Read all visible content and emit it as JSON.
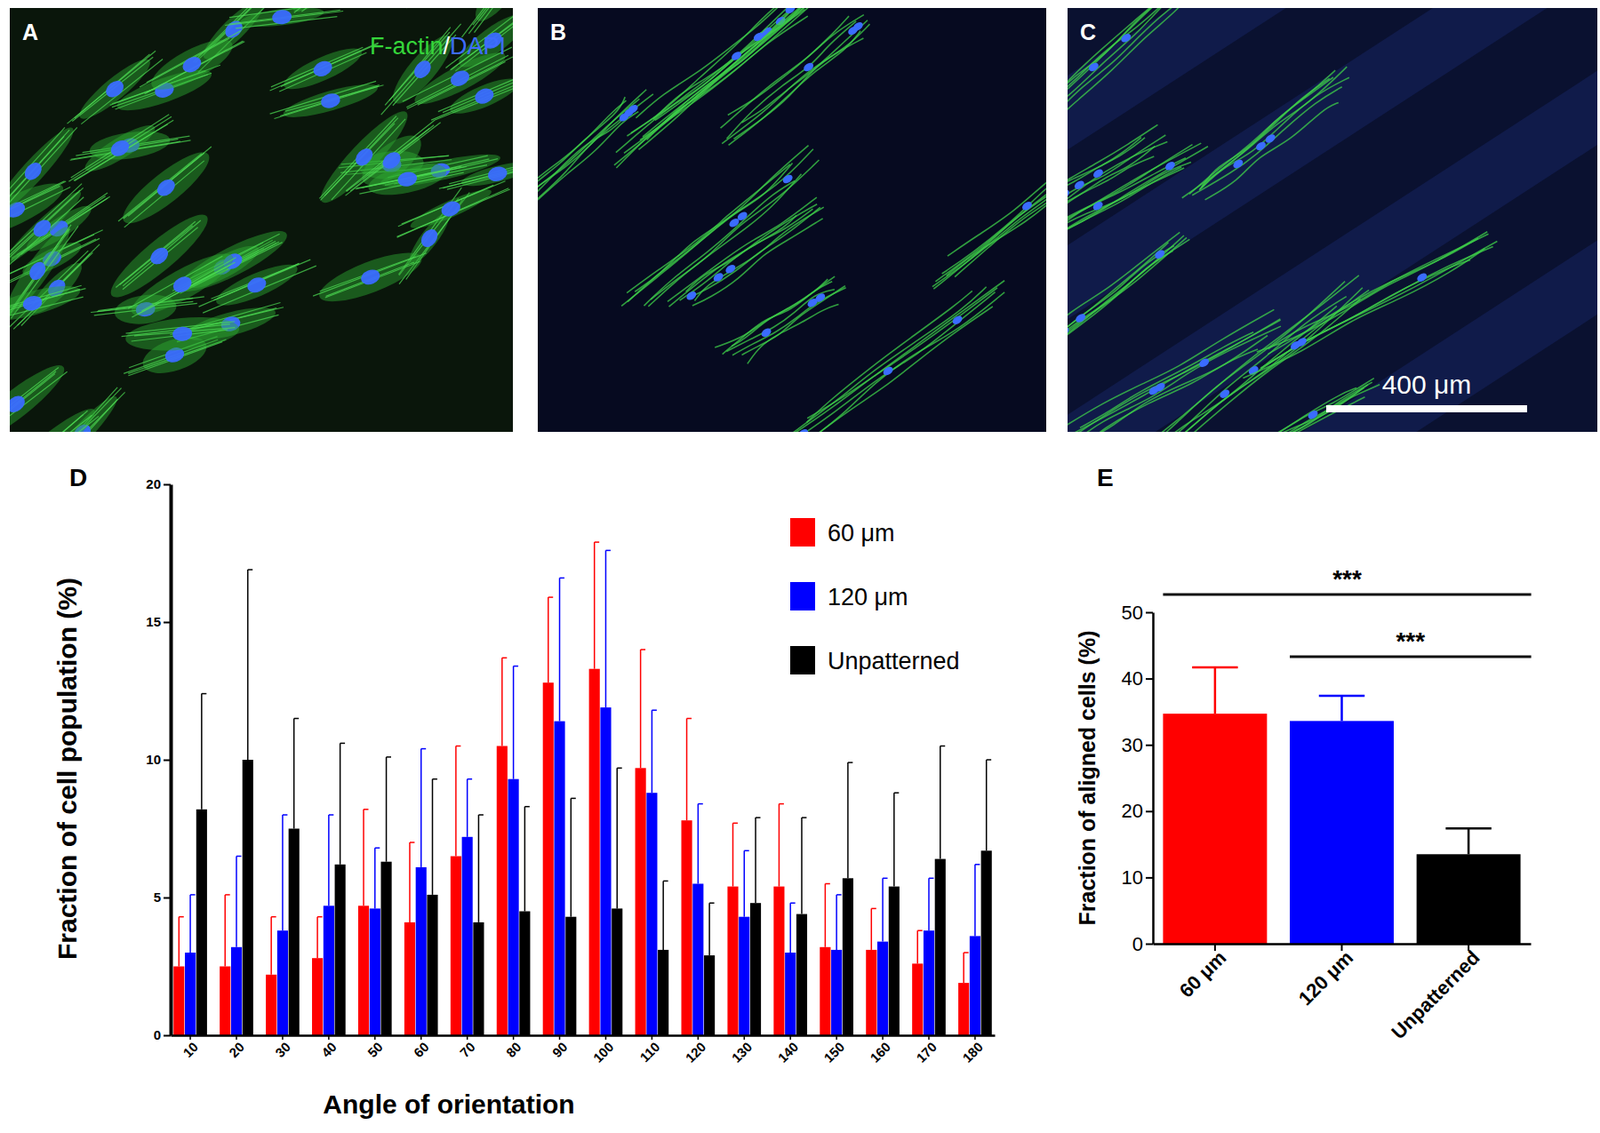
{
  "images": [
    {
      "label": "A",
      "stains": [
        {
          "text": "F-actin",
          "color": "#35d63a"
        },
        {
          "text": "/",
          "color": "#ffffff"
        },
        {
          "text": "DAPI",
          "color": "#3f6cff"
        }
      ]
    },
    {
      "label": "B"
    },
    {
      "label": "C",
      "scale_bar": "400 μm"
    }
  ],
  "chart_data": [
    {
      "type": "bar",
      "panel_label": "D",
      "y_label": "Fraction of cell population (%)",
      "x_label": "Angle of orientation",
      "categories": [
        10,
        20,
        30,
        40,
        50,
        60,
        70,
        80,
        90,
        100,
        110,
        120,
        130,
        140,
        150,
        160,
        170,
        180
      ],
      "ylim": [
        0,
        20
      ],
      "yticks": [
        0,
        5,
        10,
        15,
        20
      ],
      "legend": "top-right",
      "series": [
        {
          "name": "60 μm",
          "color": "#ff0000",
          "values": [
            2.5,
            2.5,
            2.2,
            2.8,
            4.7,
            4.1,
            6.5,
            10.5,
            12.8,
            13.3,
            9.7,
            7.8,
            5.4,
            5.4,
            3.2,
            3.1,
            2.6,
            1.9
          ],
          "errors": [
            1.8,
            2.6,
            2.1,
            1.5,
            3.5,
            2.9,
            4.0,
            3.2,
            3.1,
            4.6,
            4.3,
            3.7,
            2.3,
            3.0,
            2.3,
            1.5,
            1.2,
            1.1
          ]
        },
        {
          "name": "120 μm",
          "color": "#0000ff",
          "values": [
            3.0,
            3.2,
            3.8,
            4.7,
            4.6,
            6.1,
            7.2,
            9.3,
            11.4,
            11.9,
            8.8,
            5.5,
            4.3,
            3.0,
            3.1,
            3.4,
            3.8,
            3.6
          ],
          "errors": [
            2.1,
            3.3,
            4.2,
            3.3,
            2.2,
            4.3,
            2.1,
            4.1,
            5.2,
            5.7,
            3.0,
            2.9,
            2.4,
            1.8,
            2.0,
            2.3,
            1.9,
            2.6
          ]
        },
        {
          "name": "Unpatterned",
          "color": "#000000",
          "values": [
            8.2,
            10.0,
            7.5,
            6.2,
            6.3,
            5.1,
            4.1,
            4.5,
            4.3,
            4.6,
            3.1,
            2.9,
            4.8,
            4.4,
            5.7,
            5.4,
            6.4,
            6.7
          ],
          "errors": [
            4.2,
            6.9,
            4.0,
            4.4,
            3.8,
            4.2,
            3.9,
            3.8,
            4.3,
            5.1,
            2.5,
            1.9,
            3.1,
            3.5,
            4.2,
            3.4,
            4.1,
            3.3
          ]
        }
      ]
    },
    {
      "type": "bar",
      "panel_label": "E",
      "y_label": "Fraction of aligned cells (%)",
      "categories": [
        "60 μm",
        "120 μm",
        "Unpatterned"
      ],
      "values": [
        34.7,
        33.6,
        13.5
      ],
      "errors": [
        7.0,
        3.8,
        3.9
      ],
      "colors": [
        "#ff0000",
        "#0000ff",
        "#000000"
      ],
      "ylim": [
        0,
        50
      ],
      "yticks": [
        0,
        10,
        20,
        30,
        40,
        50
      ],
      "annotations": [
        {
          "from": 0,
          "to": 2,
          "label": "***"
        },
        {
          "from": 1,
          "to": 2,
          "label": "***"
        }
      ]
    }
  ]
}
